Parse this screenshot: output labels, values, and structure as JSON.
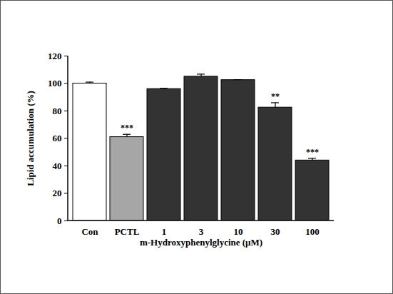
{
  "chart_data": {
    "type": "bar",
    "categories": [
      "Con",
      "PCTL",
      "1",
      "3",
      "10",
      "30",
      "100"
    ],
    "values": [
      100,
      61,
      96,
      105,
      102.5,
      82.5,
      44
    ],
    "errors": [
      1,
      2,
      0.5,
      1.8,
      0.3,
      3.5,
      1.5
    ],
    "significance": [
      null,
      "***",
      null,
      null,
      null,
      "**",
      "***"
    ],
    "colors": [
      "#ffffff",
      "#a6a6a6",
      "#333333",
      "#333333",
      "#333333",
      "#333333",
      "#333333"
    ],
    "ylabel": "Lipid accumulation (%)",
    "xlabel": "m-Hydroxyphenylglycine (μM)",
    "ylim": [
      0,
      120
    ],
    "yticks": [
      0,
      20,
      40,
      60,
      80,
      100,
      120
    ],
    "grid": false
  }
}
